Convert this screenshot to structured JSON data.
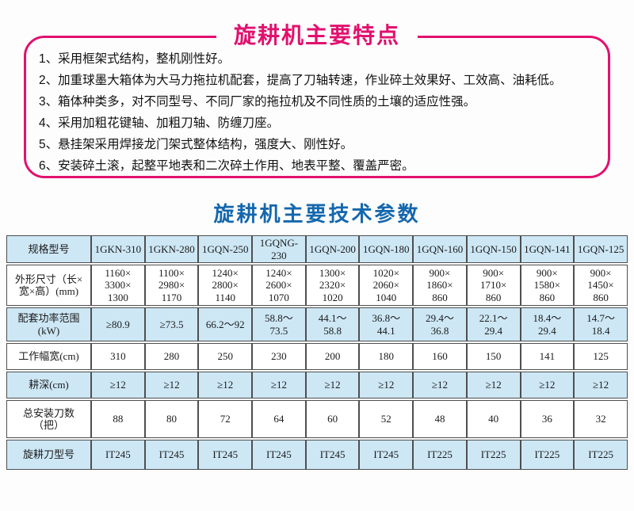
{
  "colors": {
    "accent_pink": "#e2116e",
    "accent_blue": "#1467ad",
    "stripe_blue": "#cde7f5",
    "table_border": "#4f4f4f"
  },
  "features_box": {
    "title": "旋耕机主要特点",
    "items": [
      "1、采用框架式结构，整机刚性好。",
      "2、加重球墨大箱体为大马力拖拉机配套，提高了刀轴转速，作业碎土效果好、工效高、油耗低。",
      "3、箱体种类多，对不同型号、不同厂家的拖拉机及不同性质的土壤的适应性强。",
      "4、采用加粗花键轴、加粗刀轴、防缠刀座。",
      "5、悬挂架采用焊接龙门架式整体结构，强度大、刚性好。",
      "6、安装碎土滚，起整平地表和二次碎土作用、地表平整、覆盖严密。"
    ]
  },
  "specs": {
    "title": "旋耕机主要技术参数",
    "table": {
      "rows": [
        {
          "label": "规格型号",
          "striped": true,
          "values": [
            "1GKN-310",
            "1GKN-280",
            "1GQN-250",
            "1GQNG-230",
            "1GQN-200",
            "1GQN-180",
            "1GQN-160",
            "1GQN-150",
            "1GQN-141",
            "1GQN-125"
          ]
        },
        {
          "label": "外形尺寸（长×\n宽×高）(mm)",
          "striped": false,
          "values": [
            "1160×\n3300×\n1300",
            "1100×\n2980×\n1170",
            "1240×\n2800×\n1140",
            "1240×\n2600×\n1070",
            "1300×\n2320×\n1020",
            "1020×\n2060×\n1040",
            "900×\n1860×\n860",
            "900×\n1710×\n860",
            "900×\n1580×\n860",
            "900×\n1450×\n860"
          ]
        },
        {
          "label": "配套功率范围\n(kW)",
          "striped": true,
          "values": [
            "≥80.9",
            "≥73.5",
            "66.2～92",
            "58.8～\n73.5",
            "44.1～\n58.8",
            "36.8～\n44.1",
            "29.4～\n36.8",
            "22.1～\n29.4",
            "18.4～\n29.4",
            "14.7～\n18.4"
          ]
        },
        {
          "label": "工作幅宽(cm)",
          "striped": false,
          "values": [
            "310",
            "280",
            "250",
            "230",
            "200",
            "180",
            "160",
            "150",
            "141",
            "125"
          ]
        },
        {
          "label": "耕深(cm)",
          "striped": true,
          "values": [
            "≥12",
            "≥12",
            "≥12",
            "≥12",
            "≥12",
            "≥12",
            "≥12",
            "≥12",
            "≥12",
            "≥12"
          ]
        },
        {
          "label": "总安装刀数\n（把）",
          "striped": false,
          "values": [
            "88",
            "80",
            "72",
            "64",
            "60",
            "52",
            "48",
            "40",
            "36",
            "32"
          ]
        },
        {
          "label": "旋耕刀型号",
          "striped": true,
          "values": [
            "IT245",
            "IT245",
            "IT245",
            "IT245",
            "IT245",
            "IT245",
            "IT225",
            "IT225",
            "IT225",
            "IT225"
          ]
        }
      ]
    }
  }
}
